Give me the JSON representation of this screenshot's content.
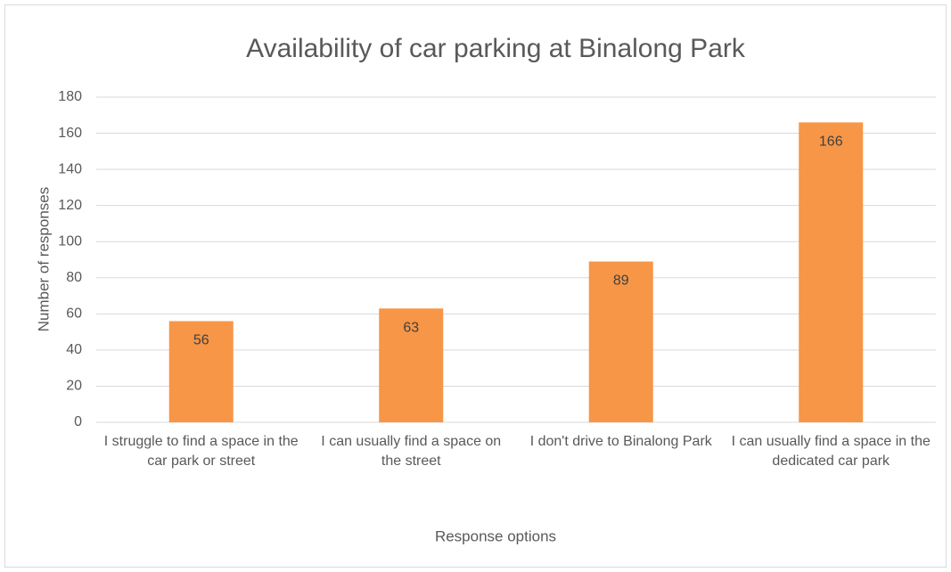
{
  "chart_data": {
    "type": "bar",
    "title": "Availability of car parking at Binalong Park",
    "x_label": "Response options",
    "y_label": "Number of responses",
    "categories": [
      "I struggle to find a space in the car park or street",
      "I can usually find a space on the street",
      "I don't drive to Binalong Park",
      "I can usually find a space in the dedicated car park"
    ],
    "values": [
      56,
      63,
      89,
      166
    ],
    "color": "#f79646",
    "ylim": [
      0,
      180
    ],
    "yticks": [
      0,
      20,
      40,
      60,
      80,
      100,
      120,
      140,
      160,
      180
    ],
    "grid": true
  }
}
